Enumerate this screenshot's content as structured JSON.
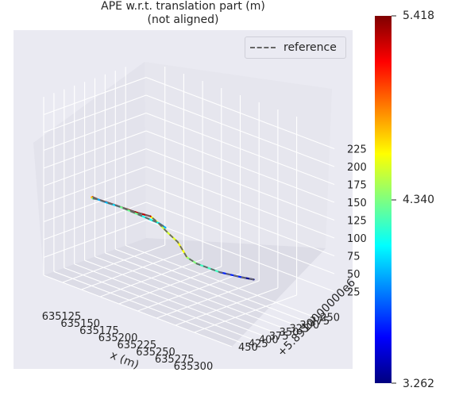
{
  "chart_data": {
    "type": "line",
    "title": "APE w.r.t. translation part (m)",
    "subtitle": "(not aligned)",
    "xlabel": "x (m)",
    "ylabel": "y (m)",
    "y_offset_text": "+5.8910000000e6",
    "x_ticks": [
      "635125",
      "635150",
      "635175",
      "635200",
      "635225",
      "635250",
      "635275",
      "635300"
    ],
    "y_ticks": [
      "250",
      "275",
      "300",
      "325",
      "350",
      "375",
      "400",
      "425",
      "450"
    ],
    "z_ticks": [
      "25",
      "50",
      "75",
      "100",
      "125",
      "150",
      "175",
      "200",
      "225"
    ],
    "legend": [
      {
        "name": "reference",
        "style": "dashed",
        "color": "#666666"
      }
    ],
    "colorbar": {
      "colormap": "jet",
      "min": "3.262",
      "mid": "4.340",
      "max": "5.418"
    },
    "series": [
      {
        "name": "reference",
        "points": [
          [
            635280,
            268,
            28
          ],
          [
            635275,
            290,
            34
          ],
          [
            635255,
            305,
            36
          ],
          [
            635230,
            315,
            40
          ],
          [
            635225,
            330,
            50
          ],
          [
            635232,
            350,
            64
          ],
          [
            635240,
            380,
            88
          ],
          [
            635238,
            400,
            104
          ],
          [
            635232,
            415,
            120
          ],
          [
            635230,
            428,
            130
          ],
          [
            635215,
            438,
            132
          ],
          [
            635190,
            440,
            132
          ],
          [
            635165,
            438,
            130
          ],
          [
            635155,
            432,
            128
          ],
          [
            635150,
            425,
            124
          ],
          [
            635148,
            418,
            120
          ],
          [
            635150,
            410,
            118
          ],
          [
            635160,
            405,
            116
          ],
          [
            635175,
            402,
            116
          ],
          [
            635200,
            400,
            114
          ],
          [
            635225,
            398,
            112
          ],
          [
            635232,
            395,
            108
          ]
        ]
      },
      {
        "name": "estimate",
        "points": [
          [
            635280,
            268,
            28
          ],
          [
            635275,
            290,
            34
          ],
          [
            635255,
            305,
            36
          ],
          [
            635230,
            315,
            40
          ],
          [
            635225,
            330,
            50
          ],
          [
            635232,
            350,
            64
          ],
          [
            635240,
            380,
            88
          ],
          [
            635238,
            400,
            104
          ],
          [
            635232,
            415,
            120
          ],
          [
            635230,
            428,
            130
          ],
          [
            635215,
            438,
            132
          ],
          [
            635190,
            440,
            132
          ],
          [
            635165,
            438,
            130
          ],
          [
            635155,
            432,
            128
          ],
          [
            635150,
            425,
            124
          ],
          [
            635148,
            418,
            120
          ],
          [
            635150,
            410,
            118
          ],
          [
            635160,
            405,
            116
          ],
          [
            635175,
            402,
            116
          ],
          [
            635200,
            400,
            114
          ],
          [
            635225,
            398,
            112
          ],
          [
            635232,
            395,
            108
          ]
        ],
        "ape": [
          3.3,
          3.6,
          4.2,
          4.35,
          4.5,
          4.6,
          4.55,
          4.5,
          4.6,
          5.3,
          5.4,
          5.35,
          5.3,
          5.0,
          4.7,
          4.2,
          3.9,
          4.0,
          4.3,
          4.1,
          3.9,
          3.7
        ]
      }
    ],
    "grid": true
  }
}
